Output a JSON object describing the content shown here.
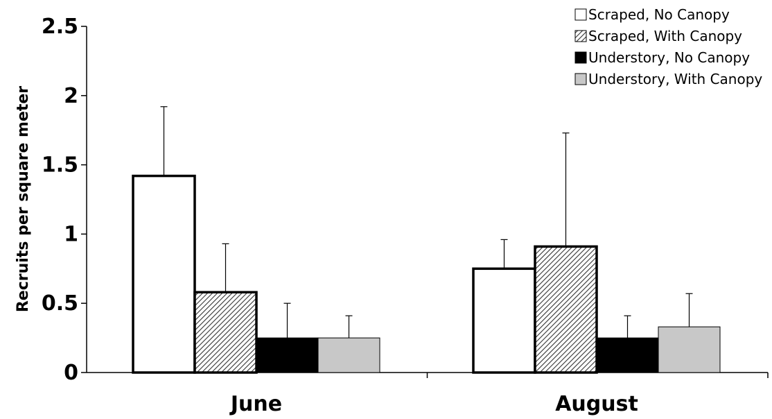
{
  "chart_data": {
    "type": "bar",
    "title": "",
    "xlabel": "",
    "ylabel": "Recruits per square meter",
    "ylim": [
      0,
      2.5
    ],
    "yticks": [
      "0",
      "0.5",
      "1",
      "1.5",
      "2",
      "2.5"
    ],
    "categories": [
      "June",
      "August"
    ],
    "grid": false,
    "legend_position": "top-right",
    "series": [
      {
        "name": "Scraped, No Canopy",
        "values": [
          1.42,
          0.75
        ],
        "error": [
          0.5,
          0.21
        ],
        "fill": "#ffffff",
        "pattern": "none"
      },
      {
        "name": "Scraped, With Canopy",
        "values": [
          0.58,
          0.91
        ],
        "error": [
          0.35,
          0.82
        ],
        "fill": "#ffffff",
        "pattern": "hatch"
      },
      {
        "name": "Understory, No Canopy",
        "values": [
          0.25,
          0.25
        ],
        "error": [
          0.25,
          0.16
        ],
        "fill": "#000000",
        "pattern": "none"
      },
      {
        "name": "Understory, With Canopy",
        "values": [
          0.25,
          0.33
        ],
        "error": [
          0.16,
          0.24
        ],
        "fill": "#c8c8c8",
        "pattern": "none"
      }
    ]
  }
}
